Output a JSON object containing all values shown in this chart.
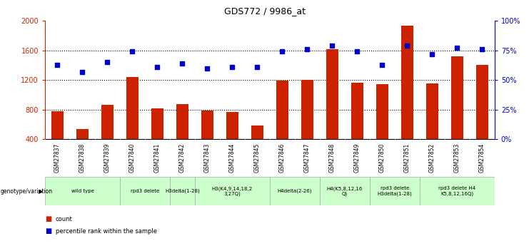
{
  "title": "GDS772 / 9986_at",
  "samples": [
    "GSM27837",
    "GSM27838",
    "GSM27839",
    "GSM27840",
    "GSM27841",
    "GSM27842",
    "GSM27843",
    "GSM27844",
    "GSM27845",
    "GSM27846",
    "GSM27847",
    "GSM27848",
    "GSM27849",
    "GSM27850",
    "GSM27851",
    "GSM27852",
    "GSM27853",
    "GSM27854"
  ],
  "counts": [
    780,
    530,
    860,
    1240,
    810,
    870,
    790,
    770,
    580,
    1190,
    1200,
    1620,
    1160,
    1140,
    1940,
    1150,
    1520,
    1400
  ],
  "percentiles": [
    63,
    57,
    65,
    74,
    61,
    64,
    60,
    61,
    61,
    74,
    76,
    79,
    74,
    63,
    79,
    72,
    77,
    76
  ],
  "ylim_left": [
    400,
    2000
  ],
  "ylim_right": [
    0,
    100
  ],
  "yticks_left": [
    400,
    800,
    1200,
    1600,
    2000
  ],
  "yticks_right": [
    0,
    25,
    50,
    75,
    100
  ],
  "bar_color": "#cc2200",
  "dot_color": "#0000cc",
  "genotype_groups": [
    {
      "label": "wild type",
      "start": 0,
      "end": 3,
      "bg": "#ccffcc"
    },
    {
      "label": "rpd3 delete",
      "start": 3,
      "end": 5,
      "bg": "#ccffcc"
    },
    {
      "label": "H3delta(1-28)",
      "start": 5,
      "end": 6,
      "bg": "#ccffcc"
    },
    {
      "label": "H3(K4,9,14,18,2\n3,27Q)",
      "start": 6,
      "end": 9,
      "bg": "#ccffcc"
    },
    {
      "label": "H4delta(2-26)",
      "start": 9,
      "end": 11,
      "bg": "#ccffcc"
    },
    {
      "label": "H4(K5,8,12,16\nQ)",
      "start": 11,
      "end": 13,
      "bg": "#ccffcc"
    },
    {
      "label": "rpd3 delete\nH3delta(1-28)",
      "start": 13,
      "end": 15,
      "bg": "#ccffcc"
    },
    {
      "label": "rpd3 delete H4\nK5,8,12,16Q)",
      "start": 15,
      "end": 18,
      "bg": "#ccffcc"
    }
  ]
}
